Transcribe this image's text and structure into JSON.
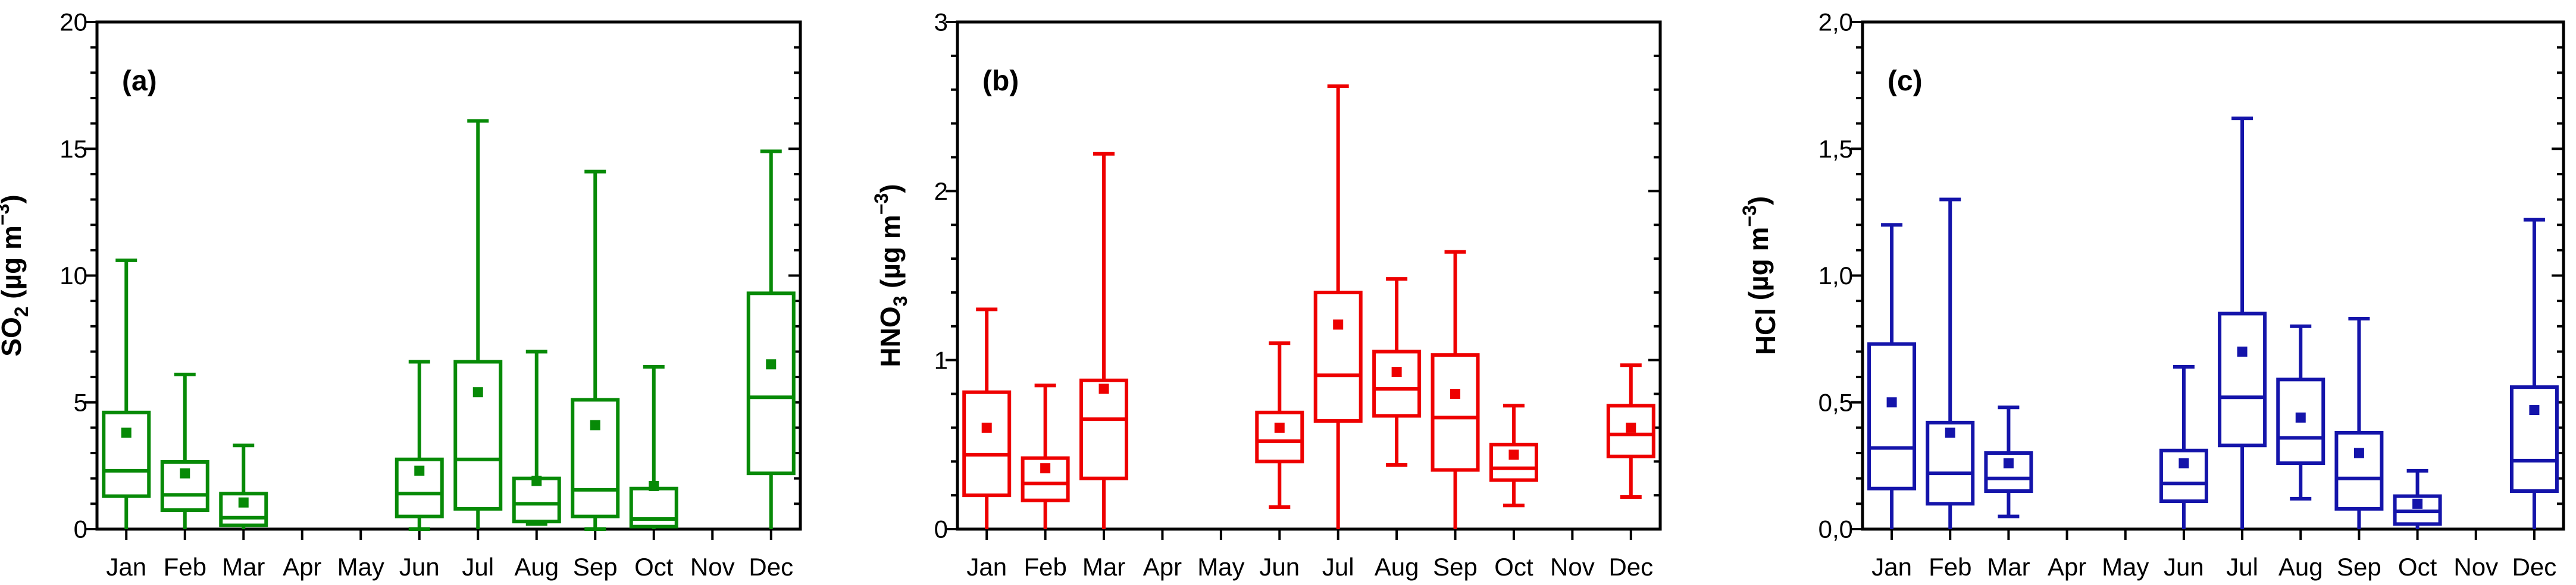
{
  "figure": {
    "background": "#ffffff",
    "axis_color": "#000000",
    "months": [
      "Jan",
      "Feb",
      "Mar",
      "Apr",
      "May",
      "Jun",
      "Jul",
      "Aug",
      "Sep",
      "Oct",
      "Nov",
      "Dec"
    ]
  },
  "chart_data": [
    {
      "type": "box",
      "panel_letter": "(a)",
      "ylabel": {
        "formula": "SO",
        "sub": "2",
        "unit_prefix": " (µg m",
        "sup": "−3",
        "unit_suffix": ")"
      },
      "color": "#078A07",
      "ylim": [
        0,
        20
      ],
      "yticks": [
        {
          "v": 0,
          "label": "0"
        },
        {
          "v": 5,
          "label": "5"
        },
        {
          "v": 10,
          "label": "10"
        },
        {
          "v": 15,
          "label": "15"
        },
        {
          "v": 20,
          "label": "20"
        }
      ],
      "minor_step": 1,
      "legend_position": "none",
      "grid": false,
      "categories": [
        "Jan",
        "Feb",
        "Mar",
        "Apr",
        "May",
        "Jun",
        "Jul",
        "Aug",
        "Sep",
        "Oct",
        "Nov",
        "Dec"
      ],
      "boxes": [
        {
          "low": 0,
          "q1": 1.3,
          "med": 2.3,
          "q3": 4.6,
          "high": 10.6,
          "mean": 3.8,
          "low_cap": false
        },
        {
          "low": 0,
          "q1": 0.75,
          "med": 1.35,
          "q3": 2.65,
          "high": 6.1,
          "mean": 2.2,
          "low_cap": false
        },
        {
          "low": 0,
          "q1": 0.15,
          "med": 0.45,
          "q3": 1.4,
          "high": 3.3,
          "mean": 1.05,
          "low_cap": false
        },
        null,
        null,
        {
          "low": 0.1,
          "q1": 0.5,
          "med": 1.4,
          "q3": 2.75,
          "high": 6.6,
          "mean": 2.3,
          "low_cap": true
        },
        {
          "low": 0,
          "q1": 0.8,
          "med": 2.75,
          "q3": 6.6,
          "high": 16.1,
          "mean": 5.4,
          "low_cap": false
        },
        {
          "low": 0.2,
          "q1": 0.3,
          "med": 1.0,
          "q3": 2.0,
          "high": 7.0,
          "mean": 1.9,
          "low_cap": true
        },
        {
          "low": 0.1,
          "q1": 0.5,
          "med": 1.55,
          "q3": 5.1,
          "high": 14.1,
          "mean": 4.1,
          "low_cap": true
        },
        {
          "low": 0,
          "q1": 0.1,
          "med": 0.4,
          "q3": 1.6,
          "high": 6.4,
          "mean": 1.7,
          "low_cap": false
        },
        null,
        {
          "low": 0,
          "q1": 2.2,
          "med": 5.2,
          "q3": 9.3,
          "high": 14.9,
          "mean": 6.5,
          "low_cap": false
        }
      ]
    },
    {
      "type": "box",
      "panel_letter": "(b)",
      "ylabel": {
        "formula": "HNO",
        "sub": "3",
        "unit_prefix": " (µg m",
        "sup": "−3",
        "unit_suffix": ")"
      },
      "color": "#EE0000",
      "ylim": [
        0,
        3
      ],
      "yticks": [
        {
          "v": 0,
          "label": "0"
        },
        {
          "v": 1,
          "label": "1"
        },
        {
          "v": 2,
          "label": "2"
        },
        {
          "v": 3,
          "label": "3"
        }
      ],
      "minor_step": 0.2,
      "legend_position": "none",
      "grid": false,
      "categories": [
        "Jan",
        "Feb",
        "Mar",
        "Apr",
        "May",
        "Jun",
        "Jul",
        "Aug",
        "Sep",
        "Oct",
        "Nov",
        "Dec"
      ],
      "boxes": [
        {
          "low": 0,
          "q1": 0.2,
          "med": 0.44,
          "q3": 0.81,
          "high": 1.3,
          "mean": 0.6,
          "low_cap": false
        },
        {
          "low": 0,
          "q1": 0.17,
          "med": 0.27,
          "q3": 0.42,
          "high": 0.85,
          "mean": 0.36,
          "low_cap": false
        },
        {
          "low": 0,
          "q1": 0.3,
          "med": 0.65,
          "q3": 0.88,
          "high": 2.22,
          "mean": 0.83,
          "low_cap": false
        },
        null,
        null,
        {
          "low": 0.13,
          "q1": 0.4,
          "med": 0.52,
          "q3": 0.69,
          "high": 1.1,
          "mean": 0.6,
          "low_cap": true
        },
        {
          "low": 0,
          "q1": 0.64,
          "med": 0.91,
          "q3": 1.4,
          "high": 2.62,
          "mean": 1.21,
          "low_cap": false
        },
        {
          "low": 0.38,
          "q1": 0.67,
          "med": 0.83,
          "q3": 1.05,
          "high": 1.48,
          "mean": 0.93,
          "low_cap": true
        },
        {
          "low": 0,
          "q1": 0.35,
          "med": 0.66,
          "q3": 1.03,
          "high": 1.64,
          "mean": 0.8,
          "low_cap": false
        },
        {
          "low": 0.14,
          "q1": 0.29,
          "med": 0.36,
          "q3": 0.5,
          "high": 0.73,
          "mean": 0.44,
          "low_cap": true
        },
        null,
        {
          "low": 0.19,
          "q1": 0.43,
          "med": 0.56,
          "q3": 0.73,
          "high": 0.97,
          "mean": 0.6,
          "low_cap": true
        }
      ]
    },
    {
      "type": "box",
      "panel_letter": "(c)",
      "ylabel": {
        "formula": "HCl",
        "sub": "",
        "unit_prefix": " (µg m",
        "sup": "−3",
        "unit_suffix": ")"
      },
      "color": "#1414AA",
      "ylim": [
        0,
        2
      ],
      "yticks": [
        {
          "v": 0,
          "label": "0,0"
        },
        {
          "v": 0.5,
          "label": "0,5"
        },
        {
          "v": 1,
          "label": "1,0"
        },
        {
          "v": 1.5,
          "label": "1,5"
        },
        {
          "v": 2,
          "label": "2,0"
        }
      ],
      "minor_step": 0.1,
      "legend_position": "none",
      "grid": false,
      "categories": [
        "Jan",
        "Feb",
        "Mar",
        "Apr",
        "May",
        "Jun",
        "Jul",
        "Aug",
        "Sep",
        "Oct",
        "Nov",
        "Dec"
      ],
      "boxes": [
        {
          "low": 0,
          "q1": 0.16,
          "med": 0.32,
          "q3": 0.73,
          "high": 1.2,
          "mean": 0.5,
          "low_cap": false
        },
        {
          "low": 0,
          "q1": 0.1,
          "med": 0.22,
          "q3": 0.42,
          "high": 1.3,
          "mean": 0.38,
          "low_cap": false
        },
        {
          "low": 0.05,
          "q1": 0.15,
          "med": 0.2,
          "q3": 0.3,
          "high": 0.48,
          "mean": 0.26,
          "low_cap": true
        },
        null,
        null,
        {
          "low": 0,
          "q1": 0.11,
          "med": 0.18,
          "q3": 0.31,
          "high": 0.64,
          "mean": 0.26,
          "low_cap": false
        },
        {
          "low": 0,
          "q1": 0.33,
          "med": 0.52,
          "q3": 0.85,
          "high": 1.62,
          "mean": 0.7,
          "low_cap": false
        },
        {
          "low": 0.12,
          "q1": 0.26,
          "med": 0.36,
          "q3": 0.59,
          "high": 0.8,
          "mean": 0.44,
          "low_cap": true
        },
        {
          "low": 0,
          "q1": 0.08,
          "med": 0.2,
          "q3": 0.38,
          "high": 0.83,
          "mean": 0.3,
          "low_cap": false
        },
        {
          "low": 0,
          "q1": 0.02,
          "med": 0.07,
          "q3": 0.13,
          "high": 0.23,
          "mean": 0.1,
          "low_cap": false
        },
        null,
        {
          "low": 0,
          "q1": 0.15,
          "med": 0.27,
          "q3": 0.56,
          "high": 1.22,
          "mean": 0.47,
          "low_cap": false
        }
      ]
    }
  ]
}
